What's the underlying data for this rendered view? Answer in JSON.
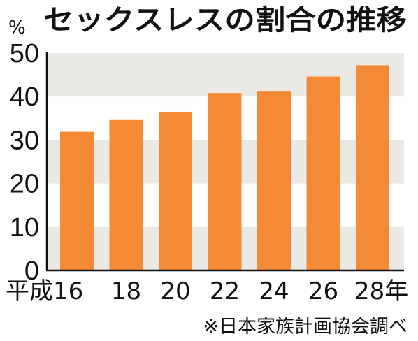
{
  "chart_data": {
    "type": "bar",
    "title": "セックスレスの割合の推移",
    "unit_label": "%",
    "categories": [
      "平成16",
      "18",
      "20",
      "22",
      "24",
      "26",
      "28年"
    ],
    "values": [
      31.9,
      34.6,
      36.5,
      40.8,
      41.3,
      44.6,
      47.2
    ],
    "xlabel": "",
    "ylabel": "",
    "ylim": [
      0,
      50
    ],
    "yticks": [
      "0",
      "10",
      "20",
      "30",
      "40",
      "50"
    ],
    "grid": "alternating horizontal bands",
    "legend": "none",
    "source": "※日本家族計画協会調べ",
    "colors": {
      "bar": "#f48a36",
      "band": "#ebe9e4",
      "axis": "#111111",
      "text": "#111111"
    }
  }
}
